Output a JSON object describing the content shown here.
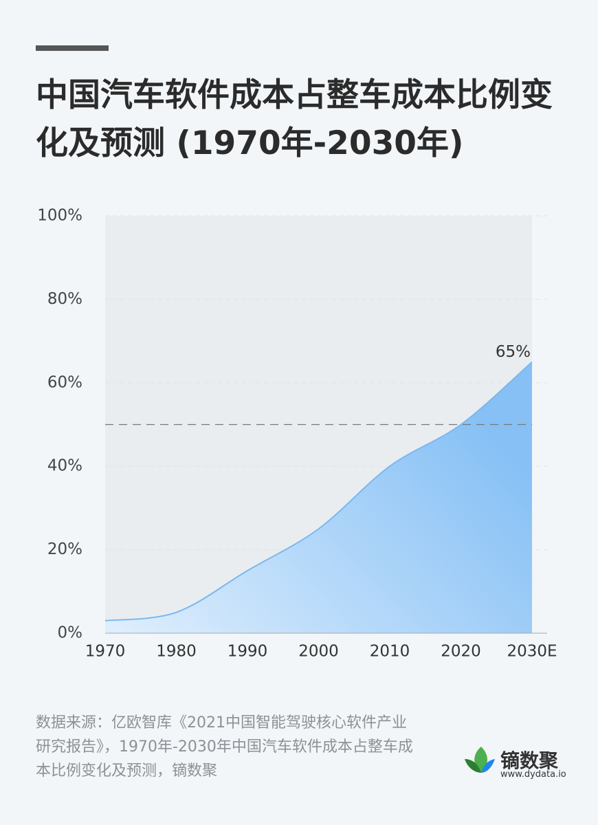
{
  "chart_data": {
    "type": "area",
    "title": "中国汽车软件成本占整车成本比例变化及预测 (1970年-2030年)",
    "categories": [
      "1970",
      "1980",
      "1990",
      "2000",
      "2010",
      "2020",
      "2030E"
    ],
    "values": [
      3,
      5,
      15,
      25,
      40,
      50,
      65
    ],
    "value_labels": [
      null,
      null,
      null,
      null,
      null,
      null,
      "65%"
    ],
    "color": "#7ab8ee",
    "ylim": [
      0,
      100
    ],
    "yticks": [
      {
        "value": 0,
        "label": "0%"
      },
      {
        "value": 20,
        "label": "20%"
      },
      {
        "value": 40,
        "label": "40%"
      },
      {
        "value": 60,
        "label": "60%"
      },
      {
        "value": 80,
        "label": "80%"
      },
      {
        "value": 100,
        "label": "100%"
      }
    ],
    "reference_line": 50,
    "grid": true,
    "source": "数据来源：亿欧智库《2021中国智能驾驶核心软件产业研究报告》，1970年-2030年中国汽车软件成本占整车成本比例变化及预测，镝数聚"
  },
  "brand": {
    "name": "镝数聚",
    "url": "www.dydata.io"
  }
}
